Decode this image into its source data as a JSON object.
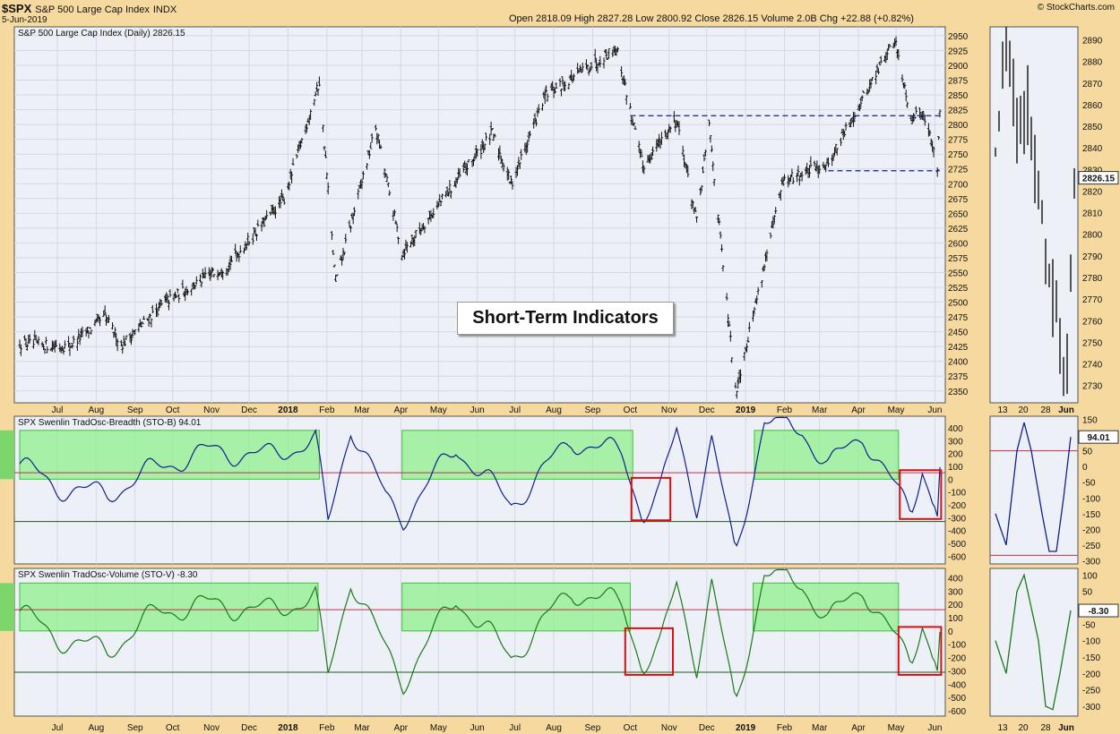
{
  "header": {
    "symbol": "$SPX",
    "name": "S&P 500 Large Cap Index",
    "exchange": "INDX",
    "date": "5-Jun-2019",
    "ohlc_text": "Open 2818.09  High 2827.28  Low 2800.92  Close 2826.15  Volume 2.0B  Chg +22.88 (+0.82%)",
    "credit": "© StockCharts.com"
  },
  "callout": "Short-Term Indicators",
  "colors": {
    "background": "#f5d99e",
    "panel": "#eef0f8",
    "breadth_line": "#10208a",
    "volume_line": "#1a7a1a",
    "zone_fill": "#8ef08e",
    "box": "#d81010",
    "resistance": "#102080"
  },
  "chart_data": [
    {
      "type": "ohlc",
      "title": "S&P 500 Large Cap Index (Daily) 2826.15",
      "ylim": [
        2330,
        2965
      ],
      "yticks": [
        2350,
        2375,
        2400,
        2425,
        2450,
        2475,
        2500,
        2525,
        2550,
        2575,
        2600,
        2625,
        2650,
        2675,
        2700,
        2725,
        2750,
        2775,
        2800,
        2825,
        2850,
        2875,
        2900,
        2925,
        2950
      ],
      "x_labels": [
        "Jul",
        "Aug",
        "Sep",
        "Oct",
        "Nov",
        "Dec",
        "2018",
        "Feb",
        "Mar",
        "Apr",
        "May",
        "Jun",
        "Jul",
        "Aug",
        "Sep",
        "Oct",
        "Nov",
        "Dec",
        "2019",
        "Feb",
        "Mar",
        "Apr",
        "May",
        "Jun"
      ],
      "x_label_bold": [
        "2018",
        "2019"
      ],
      "anchors": [
        [
          "2017-06-01",
          2430
        ],
        [
          "2017-07-10",
          2425
        ],
        [
          "2017-08-08",
          2475
        ],
        [
          "2017-08-21",
          2428
        ],
        [
          "2017-09-25",
          2500
        ],
        [
          "2017-11-15",
          2565
        ],
        [
          "2017-12-29",
          2675
        ],
        [
          "2018-01-26",
          2872
        ],
        [
          "2018-02-08",
          2532
        ],
        [
          "2018-03-12",
          2795
        ],
        [
          "2018-04-02",
          2583
        ],
        [
          "2018-06-13",
          2785
        ],
        [
          "2018-06-28",
          2700
        ],
        [
          "2018-07-25",
          2848
        ],
        [
          "2018-09-20",
          2930
        ],
        [
          "2018-10-11",
          2730
        ],
        [
          "2018-11-07",
          2810
        ],
        [
          "2018-11-23",
          2635
        ],
        [
          "2018-12-03",
          2800
        ],
        [
          "2018-12-24",
          2348
        ],
        [
          "2019-01-31",
          2704
        ],
        [
          "2019-03-08",
          2735
        ],
        [
          "2019-04-30",
          2945
        ],
        [
          "2019-05-13",
          2812
        ],
        [
          "2019-05-23",
          2822
        ],
        [
          "2019-06-03",
          2729
        ],
        [
          "2019-06-05",
          2826
        ]
      ],
      "levels": [
        {
          "value": 2815,
          "from": "2018-10-01",
          "to": "2019-06-05",
          "style": "dashed"
        },
        {
          "value": 2722,
          "from": "2019-03-08",
          "to": "2019-06-05",
          "style": "dashed"
        }
      ]
    },
    {
      "type": "line",
      "title": "SPX Swenlin TradOsc-Breadth (STO-B) 94.01",
      "ylim": [
        -660,
        490
      ],
      "yticks": [
        -600,
        -500,
        -400,
        -300,
        -200,
        -100,
        0,
        100,
        200,
        300,
        400
      ],
      "overbought": 50,
      "oversold": -330,
      "anchors": [
        [
          "2017-06-01",
          120
        ],
        [
          "2017-06-30",
          -60
        ],
        [
          "2017-08-10",
          -120
        ],
        [
          "2017-09-20",
          100
        ],
        [
          "2017-11-01",
          220
        ],
        [
          "2017-12-15",
          180
        ],
        [
          "2018-01-23",
          300
        ],
        [
          "2018-02-02",
          -350
        ],
        [
          "2018-02-20",
          420
        ],
        [
          "2018-03-20",
          -150
        ],
        [
          "2018-04-03",
          -300
        ],
        [
          "2018-05-15",
          250
        ],
        [
          "2018-06-28",
          -200
        ],
        [
          "2018-08-15",
          300
        ],
        [
          "2018-09-25",
          200
        ],
        [
          "2018-10-11",
          -280
        ],
        [
          "2018-10-25",
          -100
        ],
        [
          "2018-11-07",
          380
        ],
        [
          "2018-11-23",
          -200
        ],
        [
          "2018-12-05",
          300
        ],
        [
          "2018-12-24",
          -600
        ],
        [
          "2019-01-16",
          460
        ],
        [
          "2019-02-15",
          380
        ],
        [
          "2019-03-08",
          100
        ],
        [
          "2019-04-05",
          350
        ],
        [
          "2019-05-13",
          -280
        ],
        [
          "2019-05-22",
          120
        ],
        [
          "2019-06-03",
          -290
        ],
        [
          "2019-06-05",
          94
        ]
      ],
      "zones": [
        {
          "from": "2017-06-01",
          "to": "2018-01-26",
          "y": [
            0,
            380
          ]
        },
        {
          "from": "2018-04-02",
          "to": "2018-10-03",
          "y": [
            0,
            380
          ]
        },
        {
          "from": "2019-01-08",
          "to": "2019-05-03",
          "y": [
            0,
            380
          ]
        }
      ],
      "boxes": [
        {
          "from": "2018-10-02",
          "to": "2018-11-02",
          "y": [
            -320,
            10
          ]
        },
        {
          "from": "2019-05-04",
          "to": "2019-06-06",
          "y": [
            -310,
            70
          ]
        }
      ],
      "last_label": "94.01"
    },
    {
      "type": "line",
      "title": "SPX Swenlin TradOsc-Volume (STO-V) -8.30",
      "ylim": [
        -640,
        470
      ],
      "yticks": [
        -600,
        -500,
        -400,
        -300,
        -200,
        -100,
        0,
        100,
        200,
        300,
        400
      ],
      "overbought": 160,
      "oversold": -310,
      "anchors": [
        [
          "2017-06-01",
          150
        ],
        [
          "2017-06-30",
          -50
        ],
        [
          "2017-08-10",
          -150
        ],
        [
          "2017-09-20",
          150
        ],
        [
          "2017-11-01",
          200
        ],
        [
          "2017-12-15",
          150
        ],
        [
          "2018-01-23",
          250
        ],
        [
          "2018-02-02",
          -350
        ],
        [
          "2018-02-20",
          400
        ],
        [
          "2018-03-20",
          -150
        ],
        [
          "2018-04-03",
          -380
        ],
        [
          "2018-05-15",
          250
        ],
        [
          "2018-06-28",
          -200
        ],
        [
          "2018-08-15",
          300
        ],
        [
          "2018-09-25",
          200
        ],
        [
          "2018-10-11",
          -260
        ],
        [
          "2018-10-25",
          -120
        ],
        [
          "2018-11-07",
          350
        ],
        [
          "2018-11-23",
          -250
        ],
        [
          "2018-12-05",
          350
        ],
        [
          "2018-12-24",
          -570
        ],
        [
          "2019-01-16",
          440
        ],
        [
          "2019-02-15",
          350
        ],
        [
          "2019-03-08",
          80
        ],
        [
          "2019-04-05",
          330
        ],
        [
          "2019-05-13",
          -260
        ],
        [
          "2019-05-22",
          100
        ],
        [
          "2019-06-03",
          -300
        ],
        [
          "2019-06-05",
          -8.3
        ]
      ],
      "zones": [
        {
          "from": "2017-06-01",
          "to": "2018-01-25",
          "y": [
            0,
            360
          ]
        },
        {
          "from": "2018-04-02",
          "to": "2018-10-01",
          "y": [
            0,
            360
          ]
        },
        {
          "from": "2019-01-07",
          "to": "2019-05-03",
          "y": [
            0,
            360
          ]
        }
      ],
      "boxes": [
        {
          "from": "2018-09-27",
          "to": "2018-11-04",
          "y": [
            -330,
            20
          ]
        },
        {
          "from": "2019-05-03",
          "to": "2019-06-06",
          "y": [
            -330,
            30
          ]
        }
      ],
      "last_label": "-8.30"
    }
  ],
  "inset": {
    "x_labels": [
      "13",
      "20",
      "28",
      "Jun"
    ],
    "price": {
      "ylim": [
        2722,
        2896
      ],
      "yticks": [
        2730,
        2740,
        2750,
        2760,
        2770,
        2780,
        2790,
        2800,
        2810,
        2820,
        2830,
        2840,
        2850,
        2860,
        2870,
        2880,
        2890
      ],
      "last_label": "2826.15",
      "anchors": [
        [
          0,
          2840
        ],
        [
          3,
          2885
        ],
        [
          6,
          2850
        ],
        [
          9,
          2860
        ],
        [
          12,
          2820
        ],
        [
          15,
          2780
        ],
        [
          18,
          2750
        ],
        [
          20,
          2735
        ],
        [
          22,
          2826
        ]
      ]
    },
    "breadth": {
      "ylim": [
        -310,
        160
      ],
      "yticks": [
        -300,
        -250,
        -200,
        -150,
        -100,
        -50,
        0,
        50,
        100,
        150
      ],
      "anchors": [
        [
          0,
          -150
        ],
        [
          3,
          -250
        ],
        [
          6,
          50
        ],
        [
          8,
          140
        ],
        [
          10,
          50
        ],
        [
          13,
          -150
        ],
        [
          15,
          -270
        ],
        [
          17,
          -270
        ],
        [
          19,
          -100
        ],
        [
          21,
          94
        ]
      ],
      "last_label": "94.01"
    },
    "volume": {
      "ylim": [
        -330,
        120
      ],
      "yticks": [
        -300,
        -250,
        -200,
        -150,
        -100,
        -50,
        0,
        50,
        100
      ],
      "anchors": [
        [
          0,
          -100
        ],
        [
          3,
          -200
        ],
        [
          6,
          50
        ],
        [
          8,
          100
        ],
        [
          10,
          0
        ],
        [
          12,
          -100
        ],
        [
          14,
          -300
        ],
        [
          16,
          -310
        ],
        [
          18,
          -200
        ],
        [
          21,
          -8.3
        ]
      ],
      "last_label": "-8.30"
    }
  }
}
